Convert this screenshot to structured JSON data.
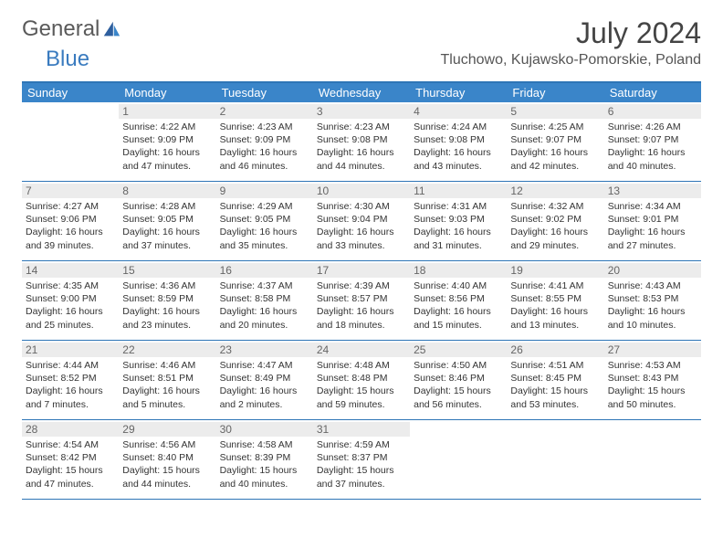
{
  "logo": {
    "part1": "General",
    "part2": "Blue"
  },
  "title": "July 2024",
  "location": "Tluchowo, Kujawsko-Pomorskie, Poland",
  "colors": {
    "header_bg": "#3a85c9",
    "header_border": "#2e75b6",
    "daynum_bg": "#ececec",
    "logo_gray": "#5a5a5a",
    "logo_blue": "#3a7bbf",
    "text": "#333333"
  },
  "weekdays": [
    "Sunday",
    "Monday",
    "Tuesday",
    "Wednesday",
    "Thursday",
    "Friday",
    "Saturday"
  ],
  "weeks": [
    [
      {
        "day": "",
        "sunrise": "",
        "sunset": "",
        "daylight": ""
      },
      {
        "day": "1",
        "sunrise": "4:22 AM",
        "sunset": "9:09 PM",
        "daylight": "16 hours and 47 minutes."
      },
      {
        "day": "2",
        "sunrise": "4:23 AM",
        "sunset": "9:09 PM",
        "daylight": "16 hours and 46 minutes."
      },
      {
        "day": "3",
        "sunrise": "4:23 AM",
        "sunset": "9:08 PM",
        "daylight": "16 hours and 44 minutes."
      },
      {
        "day": "4",
        "sunrise": "4:24 AM",
        "sunset": "9:08 PM",
        "daylight": "16 hours and 43 minutes."
      },
      {
        "day": "5",
        "sunrise": "4:25 AM",
        "sunset": "9:07 PM",
        "daylight": "16 hours and 42 minutes."
      },
      {
        "day": "6",
        "sunrise": "4:26 AM",
        "sunset": "9:07 PM",
        "daylight": "16 hours and 40 minutes."
      }
    ],
    [
      {
        "day": "7",
        "sunrise": "4:27 AM",
        "sunset": "9:06 PM",
        "daylight": "16 hours and 39 minutes."
      },
      {
        "day": "8",
        "sunrise": "4:28 AM",
        "sunset": "9:05 PM",
        "daylight": "16 hours and 37 minutes."
      },
      {
        "day": "9",
        "sunrise": "4:29 AM",
        "sunset": "9:05 PM",
        "daylight": "16 hours and 35 minutes."
      },
      {
        "day": "10",
        "sunrise": "4:30 AM",
        "sunset": "9:04 PM",
        "daylight": "16 hours and 33 minutes."
      },
      {
        "day": "11",
        "sunrise": "4:31 AM",
        "sunset": "9:03 PM",
        "daylight": "16 hours and 31 minutes."
      },
      {
        "day": "12",
        "sunrise": "4:32 AM",
        "sunset": "9:02 PM",
        "daylight": "16 hours and 29 minutes."
      },
      {
        "day": "13",
        "sunrise": "4:34 AM",
        "sunset": "9:01 PM",
        "daylight": "16 hours and 27 minutes."
      }
    ],
    [
      {
        "day": "14",
        "sunrise": "4:35 AM",
        "sunset": "9:00 PM",
        "daylight": "16 hours and 25 minutes."
      },
      {
        "day": "15",
        "sunrise": "4:36 AM",
        "sunset": "8:59 PM",
        "daylight": "16 hours and 23 minutes."
      },
      {
        "day": "16",
        "sunrise": "4:37 AM",
        "sunset": "8:58 PM",
        "daylight": "16 hours and 20 minutes."
      },
      {
        "day": "17",
        "sunrise": "4:39 AM",
        "sunset": "8:57 PM",
        "daylight": "16 hours and 18 minutes."
      },
      {
        "day": "18",
        "sunrise": "4:40 AM",
        "sunset": "8:56 PM",
        "daylight": "16 hours and 15 minutes."
      },
      {
        "day": "19",
        "sunrise": "4:41 AM",
        "sunset": "8:55 PM",
        "daylight": "16 hours and 13 minutes."
      },
      {
        "day": "20",
        "sunrise": "4:43 AM",
        "sunset": "8:53 PM",
        "daylight": "16 hours and 10 minutes."
      }
    ],
    [
      {
        "day": "21",
        "sunrise": "4:44 AM",
        "sunset": "8:52 PM",
        "daylight": "16 hours and 7 minutes."
      },
      {
        "day": "22",
        "sunrise": "4:46 AM",
        "sunset": "8:51 PM",
        "daylight": "16 hours and 5 minutes."
      },
      {
        "day": "23",
        "sunrise": "4:47 AM",
        "sunset": "8:49 PM",
        "daylight": "16 hours and 2 minutes."
      },
      {
        "day": "24",
        "sunrise": "4:48 AM",
        "sunset": "8:48 PM",
        "daylight": "15 hours and 59 minutes."
      },
      {
        "day": "25",
        "sunrise": "4:50 AM",
        "sunset": "8:46 PM",
        "daylight": "15 hours and 56 minutes."
      },
      {
        "day": "26",
        "sunrise": "4:51 AM",
        "sunset": "8:45 PM",
        "daylight": "15 hours and 53 minutes."
      },
      {
        "day": "27",
        "sunrise": "4:53 AM",
        "sunset": "8:43 PM",
        "daylight": "15 hours and 50 minutes."
      }
    ],
    [
      {
        "day": "28",
        "sunrise": "4:54 AM",
        "sunset": "8:42 PM",
        "daylight": "15 hours and 47 minutes."
      },
      {
        "day": "29",
        "sunrise": "4:56 AM",
        "sunset": "8:40 PM",
        "daylight": "15 hours and 44 minutes."
      },
      {
        "day": "30",
        "sunrise": "4:58 AM",
        "sunset": "8:39 PM",
        "daylight": "15 hours and 40 minutes."
      },
      {
        "day": "31",
        "sunrise": "4:59 AM",
        "sunset": "8:37 PM",
        "daylight": "15 hours and 37 minutes."
      },
      {
        "day": "",
        "sunrise": "",
        "sunset": "",
        "daylight": ""
      },
      {
        "day": "",
        "sunrise": "",
        "sunset": "",
        "daylight": ""
      },
      {
        "day": "",
        "sunrise": "",
        "sunset": "",
        "daylight": ""
      }
    ]
  ]
}
